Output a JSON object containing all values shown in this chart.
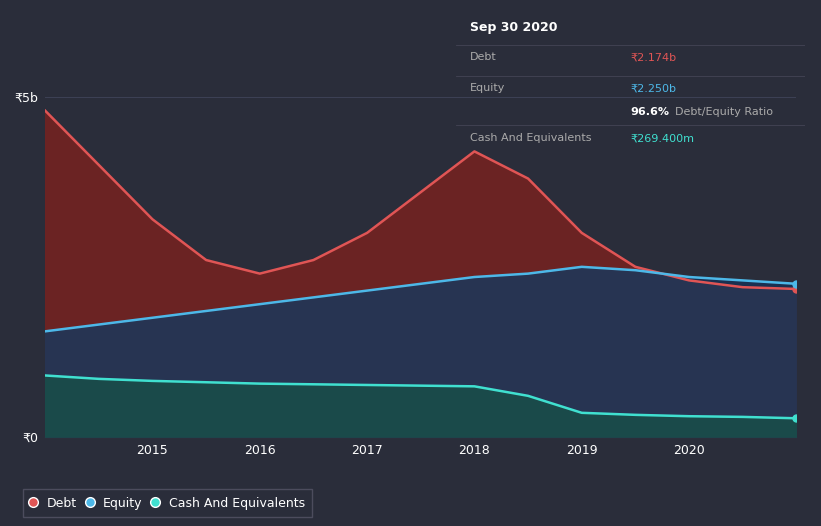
{
  "background_color": "#2a2d3a",
  "chart_bg_color": "#2a2d3a",
  "tooltip_bg": "#0d0d0d",
  "x_years": [
    2014.0,
    2014.5,
    2015.0,
    2015.5,
    2016.0,
    2016.5,
    2017.0,
    2017.5,
    2018.0,
    2018.5,
    2019.0,
    2019.5,
    2020.0,
    2020.5,
    2021.0
  ],
  "debt": [
    4.8,
    4.0,
    3.2,
    2.6,
    2.4,
    2.6,
    3.0,
    3.6,
    4.2,
    3.8,
    3.0,
    2.5,
    2.3,
    2.2,
    2.174
  ],
  "equity": [
    1.55,
    1.65,
    1.75,
    1.85,
    1.95,
    2.05,
    2.15,
    2.25,
    2.35,
    2.4,
    2.5,
    2.45,
    2.35,
    2.3,
    2.25
  ],
  "cash": [
    0.9,
    0.85,
    0.82,
    0.8,
    0.78,
    0.77,
    0.76,
    0.75,
    0.74,
    0.6,
    0.35,
    0.32,
    0.3,
    0.29,
    0.2694
  ],
  "ylim": [
    0,
    5.5
  ],
  "xticks": [
    2015,
    2016,
    2017,
    2018,
    2019,
    2020
  ],
  "ytick_labels": [
    "₹0",
    "₹5b"
  ],
  "debt_color": "#e05555",
  "equity_color": "#4db8e8",
  "cash_color": "#40e0d0",
  "debt_fill": "#6b2323",
  "equity_fill": "#273452",
  "cash_fill": "#1a4a4a",
  "crossover_fill": "#1a3050",
  "grid_color": "#3d4155",
  "spine_color": "#3d4155",
  "tooltip_title": "Sep 30 2020",
  "tooltip_debt_label": "Debt",
  "tooltip_debt_value": "₹2.174b",
  "tooltip_equity_label": "Equity",
  "tooltip_equity_value": "₹2.250b",
  "tooltip_ratio_value": "96.6%",
  "tooltip_ratio_label": "Debt/Equity Ratio",
  "tooltip_cash_label": "Cash And Equivalents",
  "tooltip_cash_value": "₹269.400m",
  "legend_debt": "Debt",
  "legend_equity": "Equity",
  "legend_cash": "Cash And Equivalents"
}
